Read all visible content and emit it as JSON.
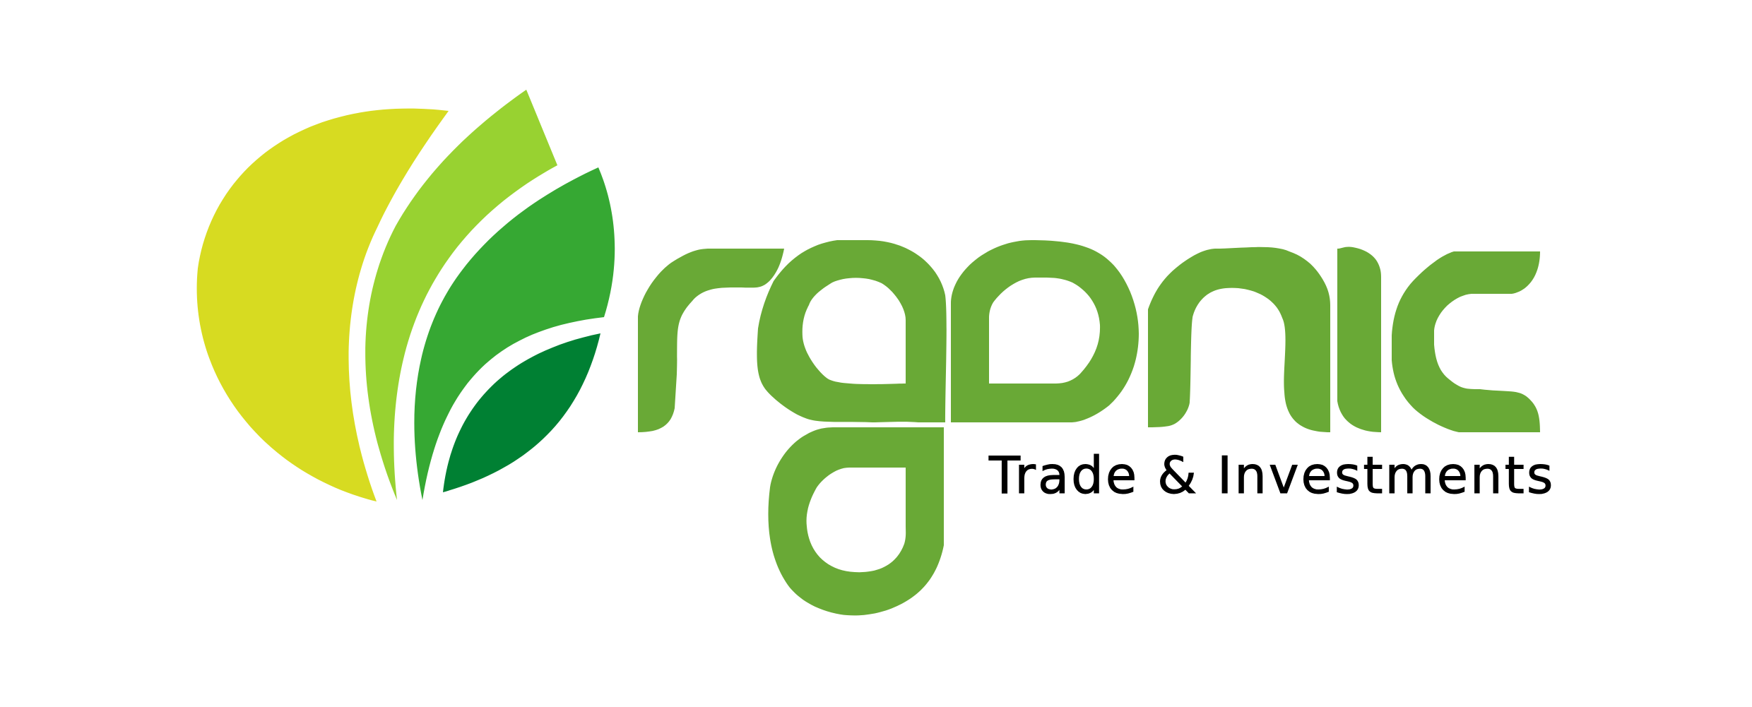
{
  "logo": {
    "wordmark": "organic",
    "tagline": "Trade & Investments",
    "icon": "leaf-cluster-icon",
    "colors": {
      "background": "#ffffff",
      "wordmark": "#69a936",
      "tagline": "#000000",
      "leaf_yellow": "#d7db21",
      "leaf_lime": "#98d231",
      "leaf_green": "#36a833",
      "leaf_dark": "#008033"
    }
  }
}
